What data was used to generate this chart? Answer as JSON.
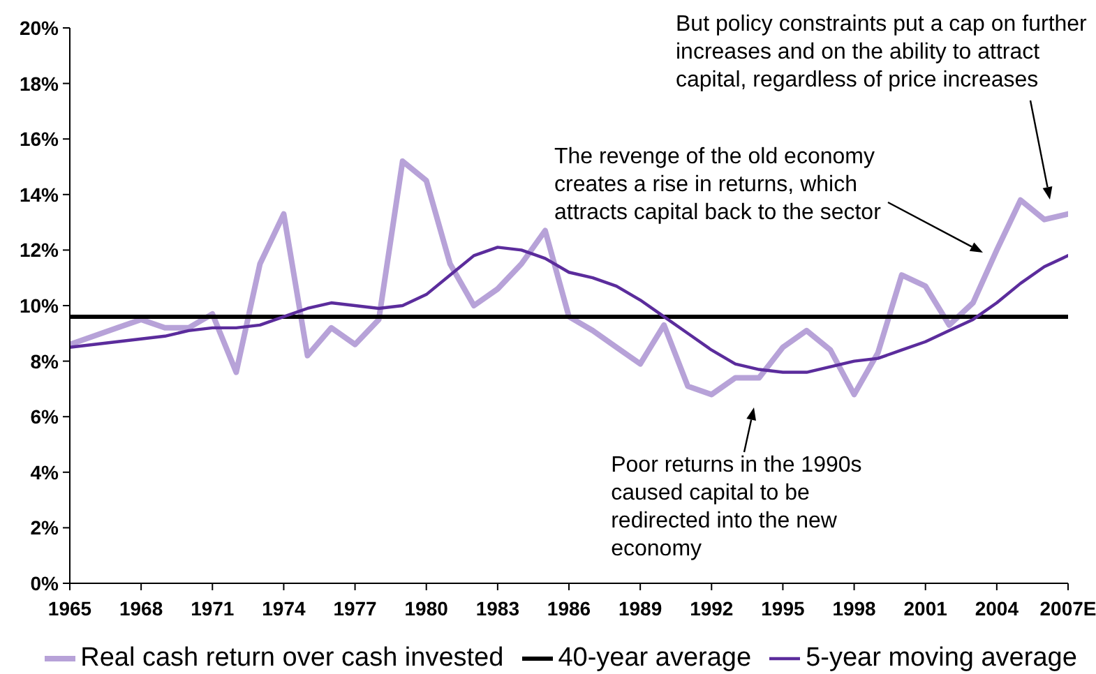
{
  "chart_data": {
    "type": "line",
    "x": [
      1965,
      1966,
      1967,
      1968,
      1969,
      1970,
      1971,
      1972,
      1973,
      1974,
      1975,
      1976,
      1977,
      1978,
      1979,
      1980,
      1981,
      1982,
      1983,
      1984,
      1985,
      1986,
      1987,
      1988,
      1989,
      1990,
      1991,
      1992,
      1993,
      1994,
      1995,
      1996,
      1997,
      1998,
      1999,
      2000,
      2001,
      2002,
      2003,
      2004,
      2005,
      2006,
      2007
    ],
    "xlim": [
      1965,
      2007
    ],
    "xticks": [
      1965,
      1968,
      1971,
      1974,
      1977,
      1980,
      1983,
      1986,
      1989,
      1992,
      1995,
      1998,
      2001,
      2004,
      {
        "value": 2007,
        "label": "2007E"
      }
    ],
    "ylim": [
      0,
      20
    ],
    "yticks": [
      {
        "value": 0,
        "label": "0%"
      },
      {
        "value": 2,
        "label": "2%"
      },
      {
        "value": 4,
        "label": "4%"
      },
      {
        "value": 6,
        "label": "6%"
      },
      {
        "value": 8,
        "label": "8%"
      },
      {
        "value": 10,
        "label": "10%"
      },
      {
        "value": 12,
        "label": "12%"
      },
      {
        "value": 14,
        "label": "14%"
      },
      {
        "value": 16,
        "label": "16%"
      },
      {
        "value": 18,
        "label": "18%"
      },
      {
        "value": 20,
        "label": "20%"
      }
    ],
    "series": [
      {
        "name": "Real cash return over cash invested",
        "color": "#b7a2d8",
        "values": [
          8.6,
          8.9,
          9.2,
          9.5,
          9.2,
          9.2,
          9.7,
          7.6,
          11.5,
          13.3,
          8.2,
          9.2,
          8.6,
          9.5,
          15.2,
          14.5,
          11.5,
          10.0,
          10.6,
          11.5,
          12.7,
          9.6,
          9.1,
          8.5,
          7.9,
          9.3,
          7.1,
          6.8,
          7.4,
          7.4,
          8.5,
          9.1,
          8.4,
          6.8,
          8.3,
          11.1,
          10.7,
          9.3,
          10.1,
          12.0,
          13.8,
          13.1,
          13.3
        ]
      },
      {
        "name": "5-year moving average",
        "color": "#5b2c9c",
        "values": [
          8.5,
          8.6,
          8.7,
          8.8,
          8.9,
          9.1,
          9.2,
          9.2,
          9.3,
          9.6,
          9.9,
          10.1,
          10.0,
          9.9,
          10.0,
          10.4,
          11.1,
          11.8,
          12.1,
          12.0,
          11.7,
          11.2,
          11.0,
          10.7,
          10.2,
          9.6,
          9.0,
          8.4,
          7.9,
          7.7,
          7.6,
          7.6,
          7.8,
          8.0,
          8.1,
          8.4,
          8.7,
          9.1,
          9.5,
          10.1,
          10.8,
          11.4,
          11.8
        ]
      }
    ],
    "ref_lines": [
      {
        "axis": "y",
        "value": 9.6,
        "label": "40-year average",
        "color": "#000000"
      }
    ],
    "legend": "bottom",
    "marker": "none",
    "annotations": [
      "But policy constraints put a cap on further increases and on the ability to attract capital, regardless of price increases",
      "The revenge of the old economy creates a rise in returns, which attracts capital back to the sector",
      "Poor returns in the 1990s caused capital to be redirected into the new economy"
    ]
  }
}
